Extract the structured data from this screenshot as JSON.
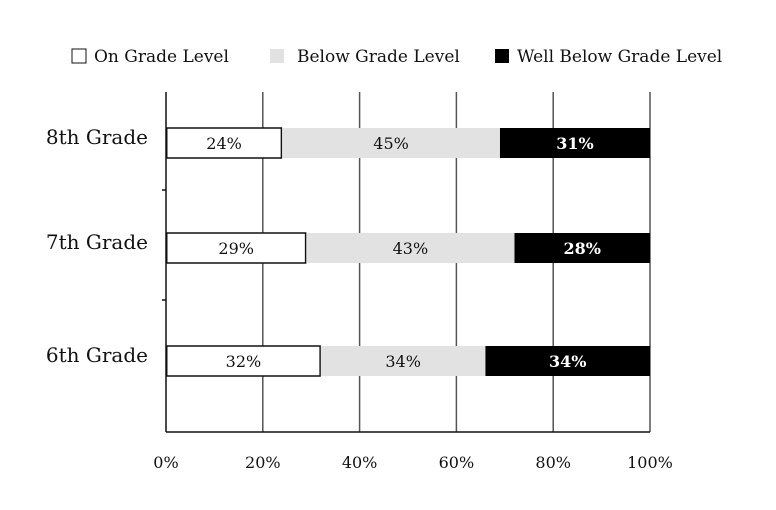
{
  "chart_data": {
    "type": "bar",
    "orientation": "horizontal",
    "stacked": true,
    "categories": [
      "8th Grade",
      "7th Grade",
      "6th Grade"
    ],
    "series": [
      {
        "name": "On Grade Level",
        "values": [
          24,
          29,
          32
        ],
        "labels": [
          "24%",
          "29%",
          "32%"
        ],
        "color": "#ffffff",
        "stroke": "#111111",
        "label_color": "#111111"
      },
      {
        "name": "Below Grade Level",
        "values": [
          45,
          43,
          34
        ],
        "labels": [
          "45%",
          "43%",
          "34%"
        ],
        "color": "#e2e2e2",
        "stroke": "none",
        "label_color": "#111111"
      },
      {
        "name": "Well Below Grade Level",
        "values": [
          31,
          28,
          34
        ],
        "labels": [
          "31%",
          "28%",
          "34%"
        ],
        "color": "#000000",
        "stroke": "none",
        "label_color": "#ffffff"
      }
    ],
    "xlim": [
      0,
      100
    ],
    "xticks": [
      0,
      20,
      40,
      60,
      80,
      100
    ],
    "xtick_labels": [
      "0%",
      "20%",
      "40%",
      "60%",
      "80%",
      "100%"
    ],
    "grid": true,
    "legend_position": "top",
    "title": "",
    "xlabel": "",
    "ylabel": ""
  }
}
